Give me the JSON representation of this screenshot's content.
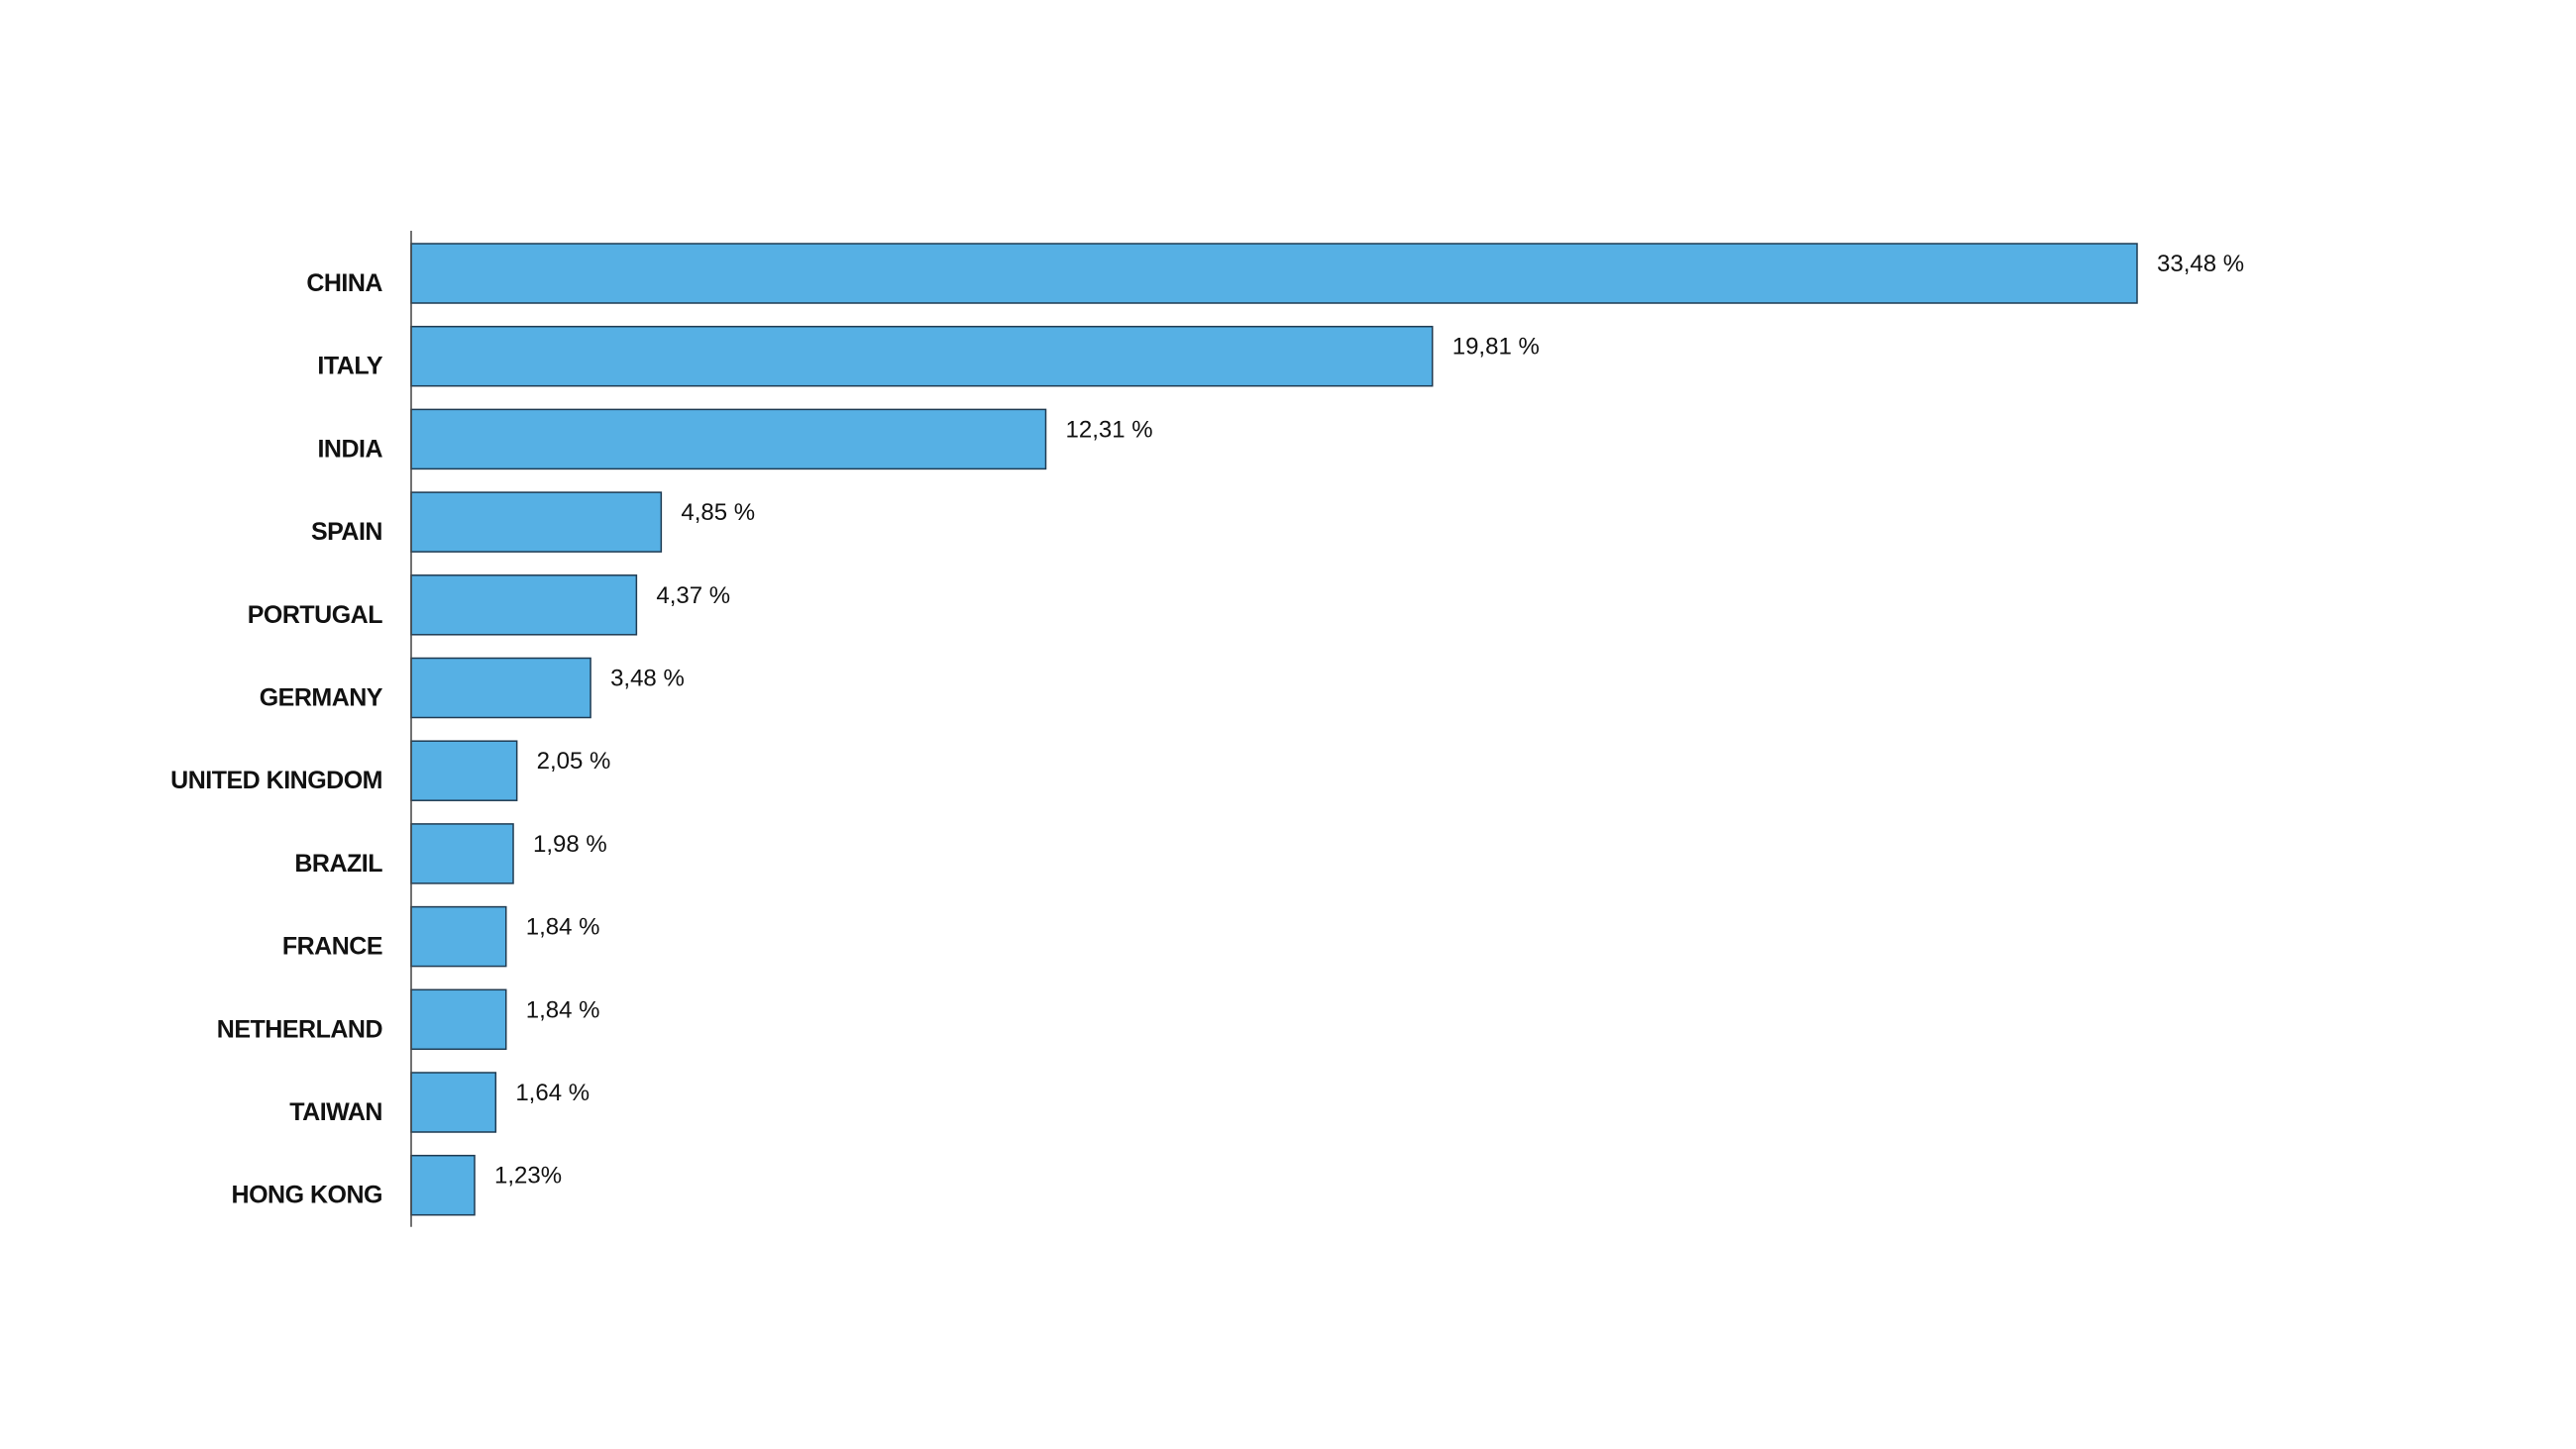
{
  "chart_data": {
    "type": "bar",
    "orientation": "horizontal",
    "title": "",
    "xlabel": "",
    "ylabel": "",
    "categories": [
      "CHINA",
      "ITALY",
      "INDIA",
      "SPAIN",
      "PORTUGAL",
      "GERMANY",
      "UNITED KINGDOM",
      "BRAZIL",
      "FRANCE",
      "NETHERLAND",
      "TAIWAN",
      "HONG KONG"
    ],
    "values": [
      33.48,
      19.81,
      12.31,
      4.85,
      4.37,
      3.48,
      2.05,
      1.98,
      1.84,
      1.84,
      1.64,
      1.23
    ],
    "value_labels": [
      "33,48 %",
      "19,81 %",
      "12,31 %",
      "4,85 %",
      "4,37 %",
      "3,48 %",
      "2,05 %",
      "1,98 %",
      "1,84 %",
      "1,84 %",
      "1,64 %",
      "1,23%"
    ],
    "xlim": [
      0,
      33.48
    ],
    "grid": false,
    "legend": "none",
    "bar_color": "#56b0e4"
  }
}
